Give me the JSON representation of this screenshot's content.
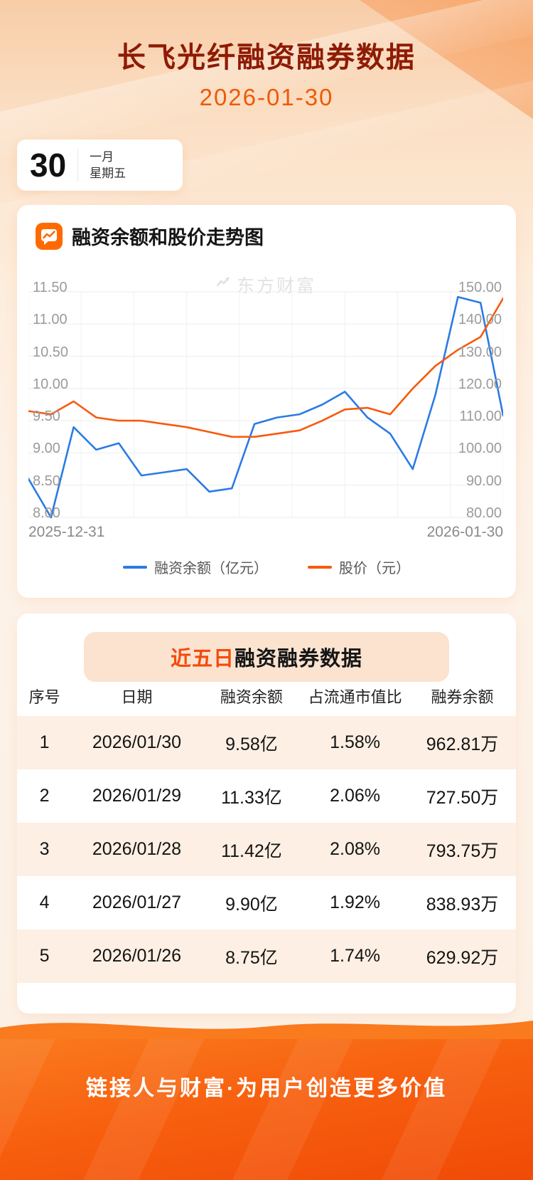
{
  "header": {
    "title": "长飞光纤融资融券数据",
    "date": "2026-01-30"
  },
  "calendar": {
    "day": "30",
    "month": "一月",
    "weekday": "星期五"
  },
  "watermark": {
    "text": "东方财富"
  },
  "chart_data": {
    "type": "line",
    "title": "融资余额和股价走势图",
    "x_axis": {
      "start_label": "2025-12-31",
      "end_label": "2026-01-30"
    },
    "left_axis": {
      "min": 8.0,
      "max": 11.5,
      "ticks": [
        "11.50",
        "11.00",
        "10.50",
        "10.00",
        "9.50",
        "9.00",
        "8.50",
        "8.00"
      ]
    },
    "right_axis": {
      "min": 80,
      "max": 150,
      "ticks": [
        "150.00",
        "140.00",
        "130.00",
        "120.00",
        "110.00",
        "100.00",
        "90.00",
        "80.00"
      ]
    },
    "grid": true,
    "legend_position": "bottom",
    "series": [
      {
        "name": "融资余额（亿元）",
        "axis": "left",
        "color": "#2B7BE4",
        "values": [
          8.6,
          8.0,
          9.4,
          9.05,
          9.15,
          8.65,
          8.7,
          8.75,
          8.4,
          8.45,
          9.45,
          9.55,
          9.6,
          9.75,
          9.95,
          9.55,
          9.3,
          8.75,
          9.9,
          11.42,
          11.33,
          9.58
        ]
      },
      {
        "name": "股价（元）",
        "axis": "right",
        "color": "#F75A0D",
        "values": [
          113,
          112,
          116,
          111,
          110,
          110,
          109,
          108,
          106.5,
          105,
          105,
          106,
          107,
          110,
          113.5,
          114,
          112,
          120,
          127,
          132,
          136,
          148
        ]
      }
    ]
  },
  "table": {
    "title_highlight": "近五日",
    "title_rest": "融资融券数据",
    "columns": [
      "序号",
      "日期",
      "融资余额",
      "占流通市值比",
      "融券余额"
    ],
    "rows": [
      [
        "1",
        "2026/01/30",
        "9.58亿",
        "1.58%",
        "962.81万"
      ],
      [
        "2",
        "2026/01/29",
        "11.33亿",
        "2.06%",
        "727.50万"
      ],
      [
        "3",
        "2026/01/28",
        "11.42亿",
        "2.08%",
        "793.75万"
      ],
      [
        "4",
        "2026/01/27",
        "9.90亿",
        "1.92%",
        "838.93万"
      ],
      [
        "5",
        "2026/01/26",
        "8.75亿",
        "1.74%",
        "629.92万"
      ]
    ]
  },
  "footer": {
    "slogan": "链接人与财富·为用户创造更多价值"
  },
  "colors": {
    "title_red": "#8E1B05",
    "accent_orange": "#FF6A00",
    "date_orange": "#ED5A07",
    "line_blue": "#2B7BE4",
    "line_orange": "#F75A0D",
    "row_alt_bg": "#FDEFE3",
    "badge_bg": "#FBE3D0"
  }
}
